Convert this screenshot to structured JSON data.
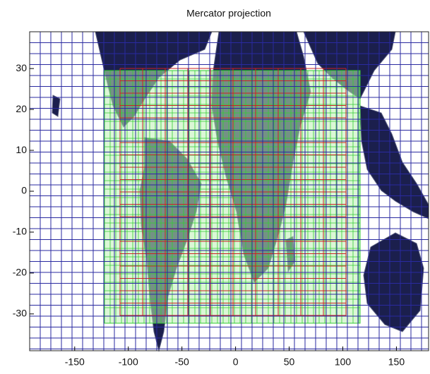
{
  "chart_data": {
    "type": "map",
    "title": "Mercator projection",
    "xlim": [
      -192,
      180
    ],
    "xticks": [
      -150,
      -100,
      -50,
      0,
      50,
      100,
      150
    ],
    "ylim": [
      -39,
      39
    ],
    "yticks": [
      -30,
      -20,
      -10,
      0,
      10,
      20,
      30
    ]
  }
}
